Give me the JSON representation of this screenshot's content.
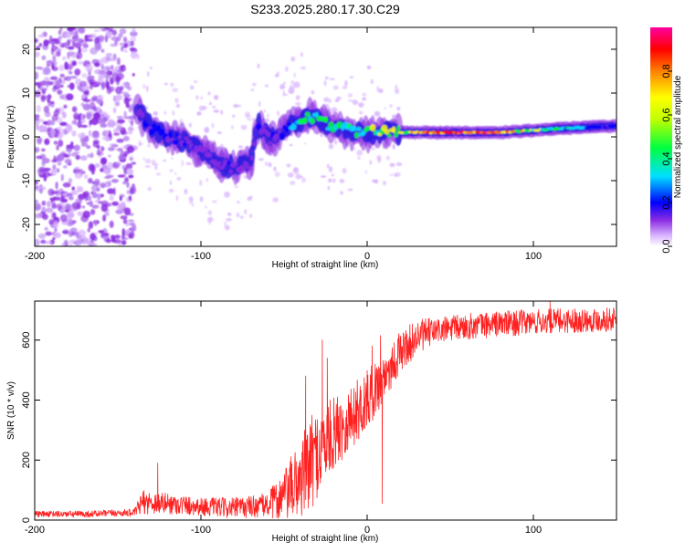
{
  "figure_title": "S233.2025.280.17.30.C29",
  "chart_data": [
    {
      "type": "heatmap",
      "title": "S233.2025.280.17.30.C29",
      "xlabel": "Height of straight line (km)",
      "ylabel": "Frequency (Hz)",
      "xlim": [
        -200,
        150
      ],
      "ylim": [
        -25,
        25
      ],
      "xticks": [
        -200,
        -100,
        0,
        100
      ],
      "xtick_labels": [
        "-200",
        "-100",
        "0",
        "100"
      ],
      "yticks": [
        -20,
        -10,
        0,
        10,
        20
      ],
      "ytick_labels": [
        "-20",
        "-10",
        "0",
        "10",
        "20"
      ],
      "colorbar": {
        "label": "Normalized spectral amplitude",
        "range": [
          0,
          1
        ],
        "ticks": [
          0.0,
          0.2,
          0.4,
          0.6,
          0.8
        ],
        "tick_labels": [
          "0.0",
          "0.2",
          "0.4",
          "0.6",
          "0.8"
        ],
        "colors": [
          "#ffffff",
          "#d9b3ff",
          "#8a2be2",
          "#0000ff",
          "#00e0ff",
          "#00ff40",
          "#ffff00",
          "#ff8000",
          "#ff0000",
          "#ff00a0"
        ]
      },
      "ridge": {
        "description_points_x": [
          -138,
          -130,
          -120,
          -110,
          -100,
          -90,
          -80,
          -70,
          -66,
          -60,
          -55,
          -50,
          -45,
          -40,
          -35,
          -30,
          -25,
          -20,
          -10,
          0,
          10,
          20,
          40,
          60,
          80,
          100,
          120,
          150
        ],
        "frequency_hz": [
          6,
          2,
          0,
          -1,
          -3,
          -6,
          -7,
          -6,
          3,
          0,
          -1,
          2,
          3,
          4,
          5,
          4,
          3,
          2,
          1.5,
          1,
          1,
          1,
          1,
          1,
          1,
          1.5,
          2,
          2.5
        ],
        "amplitude": [
          0.25,
          0.3,
          0.3,
          0.3,
          0.25,
          0.25,
          0.25,
          0.2,
          0.25,
          0.25,
          0.25,
          0.35,
          0.4,
          0.5,
          0.6,
          0.55,
          0.5,
          0.5,
          0.45,
          0.5,
          0.6,
          0.65,
          0.8,
          0.85,
          0.8,
          0.6,
          0.45,
          0.3
        ]
      },
      "noise_region_x": [
        -200,
        -140
      ]
    },
    {
      "type": "line",
      "xlabel": "Height of straight line (km)",
      "ylabel": "SNR (10 * v/v)",
      "xlim": [
        -200,
        150
      ],
      "ylim": [
        0,
        730
      ],
      "xticks": [
        -200,
        -100,
        0,
        100
      ],
      "xtick_labels": [
        "-200",
        "-100",
        "0",
        "100"
      ],
      "yticks": [
        0,
        200,
        400,
        600
      ],
      "ytick_labels": [
        "0",
        "200",
        "400",
        "600"
      ],
      "series": [
        {
          "name": "SNR",
          "color": "#ff2020",
          "trend_x": [
            -200,
            -170,
            -140,
            -135,
            -120,
            -100,
            -80,
            -60,
            -50,
            -40,
            -30,
            -20,
            -10,
            0,
            10,
            20,
            30,
            40,
            60,
            80,
            100,
            120,
            150
          ],
          "trend_y": [
            20,
            20,
            25,
            60,
            55,
            45,
            40,
            50,
            80,
            140,
            220,
            290,
            340,
            400,
            480,
            560,
            610,
            630,
            645,
            655,
            660,
            665,
            670
          ],
          "noise_amp_x": [
            -200,
            -140,
            -135,
            -100,
            -60,
            -45,
            -35,
            -20,
            0,
            20,
            40,
            150
          ],
          "noise_amp_y": [
            10,
            12,
            40,
            30,
            40,
            110,
            160,
            120,
            100,
            70,
            45,
            40
          ],
          "spikes": [
            {
              "x": -126,
              "y": 190
            },
            {
              "x": -37,
              "y": 480
            },
            {
              "x": -27,
              "y": 600
            },
            {
              "x": -24,
              "y": 540
            },
            {
              "x": 3,
              "y": 580
            },
            {
              "x": 8,
              "y": 615
            },
            {
              "x": 9,
              "y": 55
            },
            {
              "x": 110,
              "y": 730
            }
          ]
        }
      ]
    }
  ]
}
